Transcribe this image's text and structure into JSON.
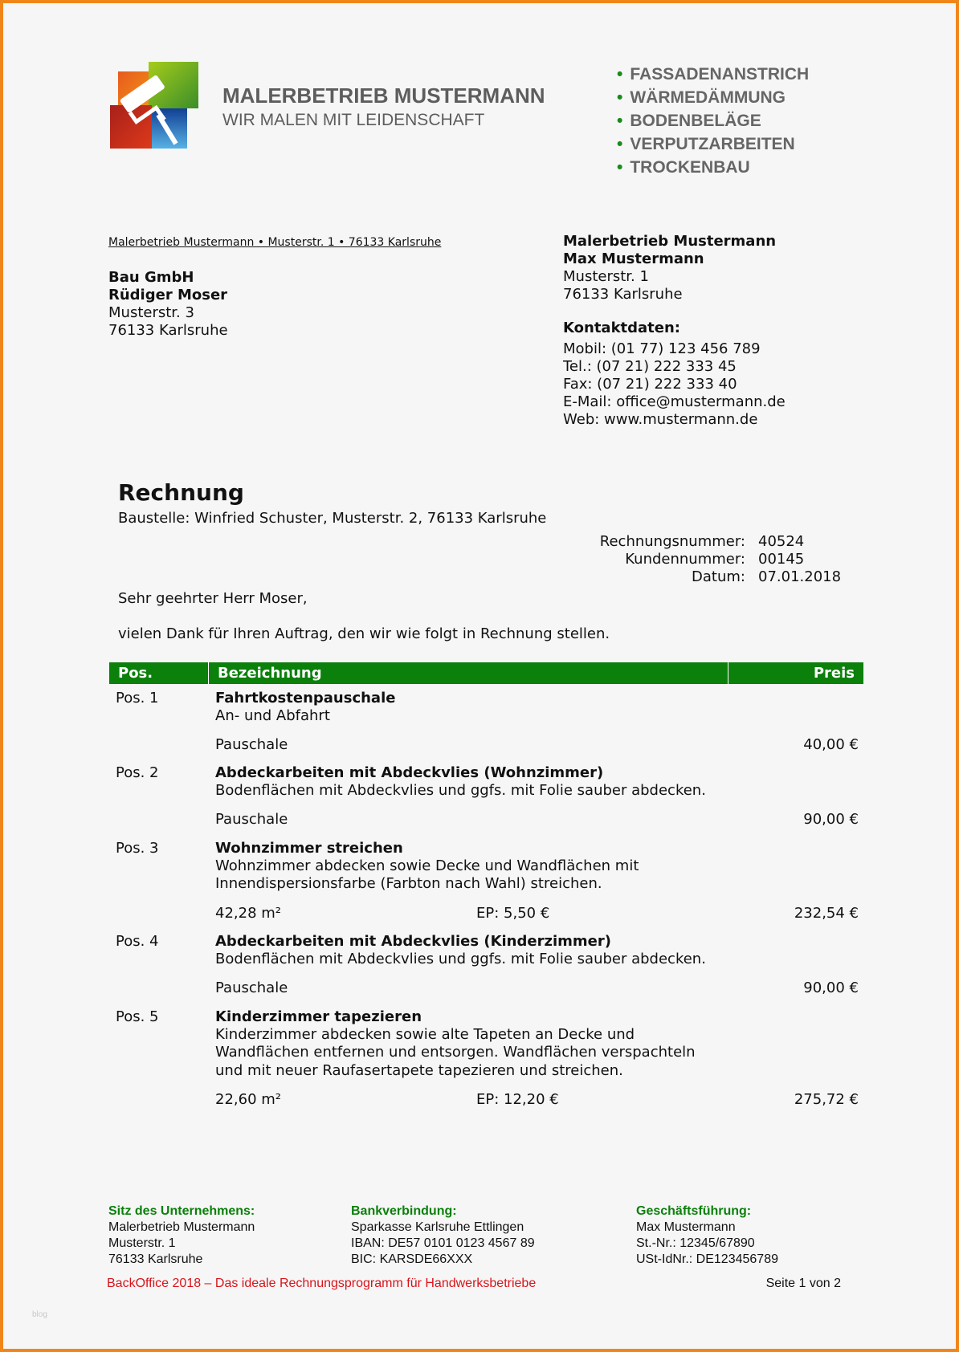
{
  "company": {
    "name": "MALERBETRIEB MUSTERMANN",
    "slogan": "WIR MALEN MIT LEIDENSCHAFT"
  },
  "services": [
    "FASSADENANSTRICH",
    "WÄRMEDÄMMUNG",
    "BODENBELÄGE",
    "VERPUTZARBEITEN",
    "TROCKENBAU"
  ],
  "sender_line": "Malerbetrieb Mustermann • Musterstr. 1 • 76133 Karlsruhe",
  "recipient": {
    "company": "Bau GmbH",
    "person": "Rüdiger Moser",
    "street": "Musterstr. 3",
    "city": "76133 Karlsruhe"
  },
  "sender": {
    "company": "Malerbetrieb Mustermann",
    "person": "Max Mustermann",
    "street": "Musterstr. 1",
    "city": "76133 Karlsruhe",
    "contact_heading": "Kontaktdaten:",
    "contacts": [
      "Mobil: (01 77) 123 456 789",
      "Tel.: (07 21) 222 333 45",
      "Fax: (07 21) 222 333 40",
      "E-Mail: office@mustermann.de",
      "Web: www.mustermann.de"
    ]
  },
  "invoice": {
    "title": "Rechnung",
    "site": "Baustelle: Winfried Schuster, Musterstr. 2, 76133 Karlsruhe",
    "meta": [
      {
        "label": "Rechnungsnummer:",
        "value": "40524"
      },
      {
        "label": "Kundennummer:",
        "value": "00145"
      },
      {
        "label": "Datum:",
        "value": "07.01.2018"
      }
    ],
    "salutation": "Sehr geehrter Herr Moser,",
    "intro": "vielen Dank für Ihren Auftrag, den wir wie folgt in Rechnung stellen."
  },
  "table": {
    "headers": {
      "pos": "Pos.",
      "desc": "Bezeichnung",
      "price": "Preis"
    },
    "rows": [
      {
        "pos": "Pos. 1",
        "title": "Fahrtkostenpauschale",
        "desc": [
          "An- und Abfahrt"
        ],
        "qty": "Pauschale",
        "ep": "",
        "price": "40,00 €"
      },
      {
        "pos": "Pos. 2",
        "title": "Abdeckarbeiten mit Abdeckvlies (Wohnzimmer)",
        "desc": [
          "Bodenflächen mit Abdeckvlies und ggfs. mit Folie sauber abdecken."
        ],
        "qty": "Pauschale",
        "ep": "",
        "price": "90,00 €"
      },
      {
        "pos": "Pos. 3",
        "title": "Wohnzimmer streichen",
        "desc": [
          "Wohnzimmer abdecken sowie Decke und Wandflächen mit",
          "Innendispersionsfarbe (Farbton nach Wahl) streichen."
        ],
        "qty": "42,28 m²",
        "ep": "EP: 5,50 €",
        "price": "232,54 €"
      },
      {
        "pos": "Pos. 4",
        "title": "Abdeckarbeiten mit Abdeckvlies (Kinderzimmer)",
        "desc": [
          "Bodenflächen mit Abdeckvlies und ggfs. mit Folie sauber abdecken."
        ],
        "qty": "Pauschale",
        "ep": "",
        "price": "90,00 €"
      },
      {
        "pos": "Pos. 5",
        "title": "Kinderzimmer tapezieren",
        "desc": [
          "Kinderzimmer abdecken sowie alte Tapeten an Decke und",
          "Wandflächen entfernen und entsorgen. Wandflächen verspachteln",
          "und mit neuer Raufasertapete tapezieren und streichen."
        ],
        "qty": "22,60 m²",
        "ep": "EP: 12,20 €",
        "price": "275,72 €"
      }
    ]
  },
  "footer": {
    "cols": [
      {
        "heading": "Sitz des Unternehmens:",
        "lines": [
          "Malerbetrieb Mustermann",
          "Musterstr. 1",
          "76133 Karlsruhe"
        ]
      },
      {
        "heading": "Bankverbindung:",
        "lines": [
          "Sparkasse Karlsruhe Ettlingen",
          "IBAN: DE57 0101 0123 4567 89",
          "BIC: KARSDE66XXX"
        ]
      },
      {
        "heading": "Geschäftsführung:",
        "lines": [
          "Max Mustermann",
          "St.-Nr.: 12345/67890",
          "USt-IdNr.: DE123456789"
        ]
      }
    ],
    "promo": "BackOffice 2018 – Das ideale Rechnungsprogramm für Handwerksbetriebe",
    "page": "Seite 1 von 2",
    "watermark": "blog"
  },
  "colors": {
    "border": "#f0861a",
    "accent": "#0b800b",
    "promo": "#d9141b"
  }
}
